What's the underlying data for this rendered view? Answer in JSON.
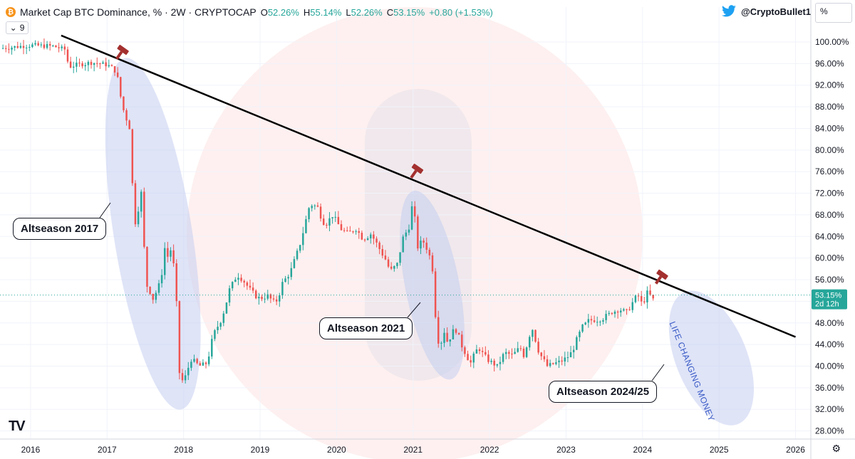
{
  "header": {
    "title": "Market Cap BTC Dominance, % · 2W · CRYPTOCAP",
    "ohlc": [
      {
        "k": "O",
        "v": "52.26%"
      },
      {
        "k": "H",
        "v": "55.14%"
      },
      {
        "k": "L",
        "v": "52.26%"
      },
      {
        "k": "C",
        "v": "53.15%"
      },
      {
        "k": "",
        "v": "+0.80 (+1.53%)"
      }
    ],
    "interval_count": "9",
    "twitter_handle": "@CryptoBullet1",
    "scale_mode": "%"
  },
  "annotations": {
    "altseason_2017": "Altseason 2017",
    "altseason_2021": "Altseason 2021",
    "altseason_2024": "Altseason 2024/25",
    "life_changing": "LIFE CHANGING MONEY"
  },
  "price_badge": {
    "value": "53.15%",
    "countdown": "2d 12h"
  },
  "colors": {
    "up": "#26a69a",
    "down": "#ef5350",
    "trendline": "#000000",
    "ellipse": "#c5cdf0",
    "badge": "#26a69a",
    "bg_logo": "#fde3e3"
  },
  "chart_data": {
    "type": "candlestick",
    "ylabel": "%",
    "ylim": [
      26.5,
      102.5
    ],
    "y_ticks": [
      28,
      32,
      36,
      40,
      44,
      48,
      52,
      56,
      60,
      64,
      68,
      72,
      76,
      80,
      84,
      88,
      92,
      96,
      100
    ],
    "y_tick_labels": [
      "28.00%",
      "32.00%",
      "36.00%",
      "40.00%",
      "44.00%",
      "48.00%",
      "52.00%",
      "56.00%",
      "60.00%",
      "64.00%",
      "68.00%",
      "72.00%",
      "76.00%",
      "80.00%",
      "84.00%",
      "88.00%",
      "92.00%",
      "96.00%",
      "100.00%"
    ],
    "xlim": [
      2015.6,
      2026.2
    ],
    "x_ticks": [
      2016,
      2017,
      2018,
      2019,
      2020,
      2021,
      2022,
      2023,
      2024,
      2025,
      2026
    ],
    "x_tick_labels": [
      "2016",
      "2017",
      "2018",
      "2019",
      "2020",
      "2021",
      "2022",
      "2023",
      "2024",
      "2025",
      "2026"
    ],
    "path": [
      [
        2015.6,
        98.8
      ],
      [
        2016.0,
        99.4
      ],
      [
        2016.3,
        99.2
      ],
      [
        2016.45,
        98.6
      ],
      [
        2016.5,
        95.5
      ],
      [
        2016.8,
        96.2
      ],
      [
        2017.0,
        95.8
      ],
      [
        2017.12,
        94.6
      ],
      [
        2017.2,
        88.0
      ],
      [
        2017.3,
        84.0
      ],
      [
        2017.35,
        66.5
      ],
      [
        2017.45,
        72.0
      ],
      [
        2017.5,
        56.0
      ],
      [
        2017.6,
        52.5
      ],
      [
        2017.7,
        55.5
      ],
      [
        2017.75,
        62.0
      ],
      [
        2017.8,
        60.0
      ],
      [
        2017.85,
        62.5
      ],
      [
        2017.9,
        52.0
      ],
      [
        2017.95,
        38.0
      ],
      [
        2018.0,
        37.0
      ],
      [
        2018.1,
        41.5
      ],
      [
        2018.2,
        40.0
      ],
      [
        2018.3,
        40.5
      ],
      [
        2018.4,
        46.0
      ],
      [
        2018.5,
        49.0
      ],
      [
        2018.6,
        54.0
      ],
      [
        2018.7,
        57.0
      ],
      [
        2018.8,
        55.5
      ],
      [
        2018.9,
        53.5
      ],
      [
        2019.0,
        52.5
      ],
      [
        2019.1,
        53.0
      ],
      [
        2019.2,
        51.5
      ],
      [
        2019.3,
        55.5
      ],
      [
        2019.4,
        57.5
      ],
      [
        2019.5,
        61.5
      ],
      [
        2019.6,
        67.0
      ],
      [
        2019.65,
        70.0
      ],
      [
        2019.75,
        69.5
      ],
      [
        2019.85,
        66.0
      ],
      [
        2019.95,
        68.0
      ],
      [
        2020.05,
        65.5
      ],
      [
        2020.15,
        64.5
      ],
      [
        2020.25,
        65.5
      ],
      [
        2020.35,
        63.5
      ],
      [
        2020.45,
        64.5
      ],
      [
        2020.55,
        62.0
      ],
      [
        2020.65,
        59.5
      ],
      [
        2020.7,
        57.5
      ],
      [
        2020.8,
        59.0
      ],
      [
        2020.85,
        63.0
      ],
      [
        2020.95,
        66.0
      ],
      [
        2021.0,
        70.5
      ],
      [
        2021.05,
        62.5
      ],
      [
        2021.15,
        63.0
      ],
      [
        2021.25,
        59.0
      ],
      [
        2021.3,
        49.0
      ],
      [
        2021.35,
        43.0
      ],
      [
        2021.4,
        47.0
      ],
      [
        2021.45,
        44.5
      ],
      [
        2021.55,
        47.0
      ],
      [
        2021.65,
        43.5
      ],
      [
        2021.75,
        40.5
      ],
      [
        2021.85,
        43.5
      ],
      [
        2021.95,
        41.5
      ],
      [
        2022.05,
        40.5
      ],
      [
        2022.1,
        40.0
      ],
      [
        2022.2,
        42.5
      ],
      [
        2022.3,
        42.0
      ],
      [
        2022.4,
        43.5
      ],
      [
        2022.45,
        42.0
      ],
      [
        2022.55,
        47.5
      ],
      [
        2022.65,
        42.5
      ],
      [
        2022.75,
        40.0
      ],
      [
        2022.85,
        40.5
      ],
      [
        2022.95,
        41.0
      ],
      [
        2023.05,
        42.0
      ],
      [
        2023.15,
        45.0
      ],
      [
        2023.2,
        47.0
      ],
      [
        2023.3,
        48.5
      ],
      [
        2023.4,
        48.5
      ],
      [
        2023.5,
        49.0
      ],
      [
        2023.6,
        50.0
      ],
      [
        2023.7,
        50.5
      ],
      [
        2023.8,
        50.0
      ],
      [
        2023.9,
        52.5
      ],
      [
        2023.95,
        53.0
      ],
      [
        2024.0,
        51.0
      ],
      [
        2024.05,
        53.5
      ],
      [
        2024.1,
        53.0
      ],
      [
        2024.15,
        52.0
      ]
    ],
    "trendline": [
      [
        2016.4,
        101.2
      ],
      [
        2026.0,
        45.4
      ]
    ],
    "last_close": 53.15
  }
}
